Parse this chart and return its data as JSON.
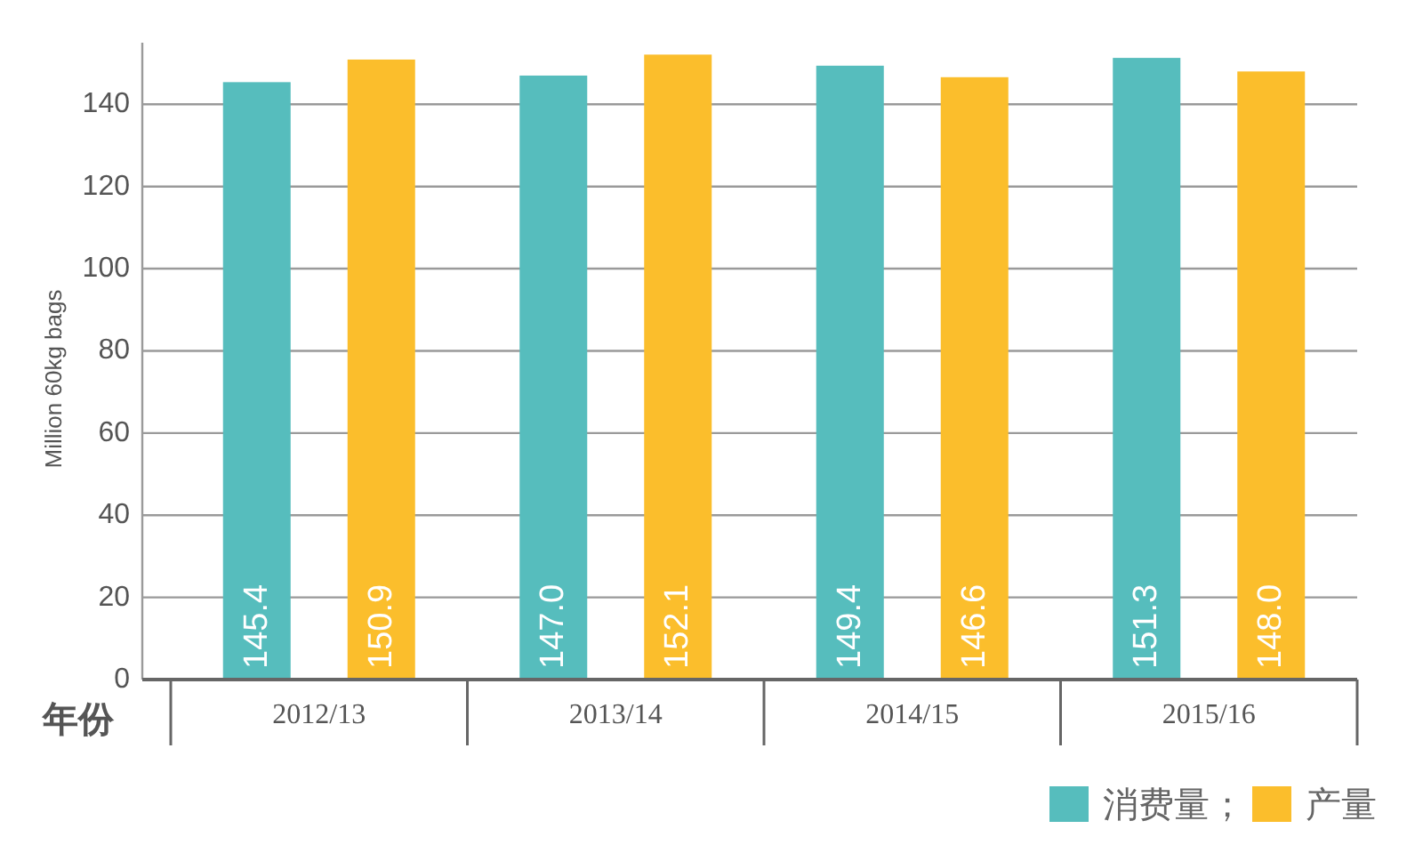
{
  "chart_data": {
    "type": "bar",
    "ylabel": "Million 60kg bags",
    "xlabel": "年份",
    "categories": [
      "2012/13",
      "2013/14",
      "2014/15",
      "2015/16"
    ],
    "series": [
      {
        "name": "消费量；",
        "color": "#56bdbd",
        "values": [
          145.4,
          147.0,
          149.4,
          151.3
        ],
        "value_labels": [
          "145.4",
          "147.0",
          "149.4",
          "151.3"
        ]
      },
      {
        "name": "产量",
        "color": "#fbbe2c",
        "values": [
          150.9,
          152.1,
          146.6,
          148.0
        ],
        "value_labels": [
          "150.9",
          "152.1",
          "146.6",
          "148.0"
        ]
      }
    ],
    "ylim": [
      0,
      155
    ],
    "yticks": [
      0,
      20,
      40,
      60,
      80,
      100,
      120,
      140
    ],
    "grid": "y",
    "legend": "bottom right"
  }
}
